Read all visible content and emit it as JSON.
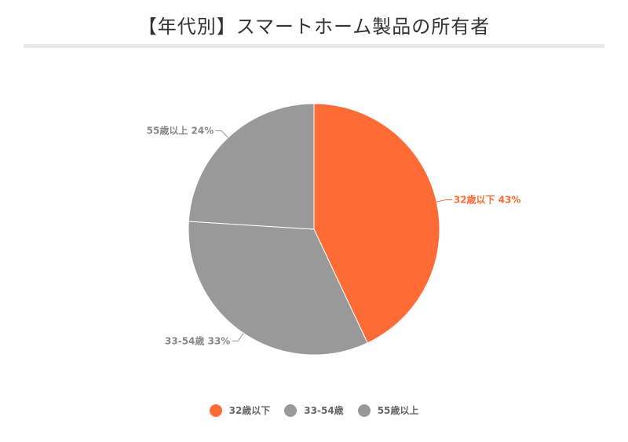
{
  "title": "【年代別】スマートホーム製品の所有者",
  "chart_data": {
    "type": "pie",
    "categories": [
      "32歳以下",
      "33-54歳",
      "55歳以上"
    ],
    "values": [
      43,
      33,
      24
    ],
    "unit": "%",
    "colors": [
      "#ff6b35",
      "#999999",
      "#999999"
    ],
    "data_labels": [
      "32歳以下 43%",
      "33-54歳 33%",
      "55歳以上 24%"
    ],
    "legend": {
      "placement": "bottom",
      "items": [
        {
          "label": "32歳以下",
          "color": "#ff6b35"
        },
        {
          "label": "33-54歳",
          "color": "#999999"
        },
        {
          "label": "55歳以上",
          "color": "#999999"
        }
      ]
    }
  }
}
